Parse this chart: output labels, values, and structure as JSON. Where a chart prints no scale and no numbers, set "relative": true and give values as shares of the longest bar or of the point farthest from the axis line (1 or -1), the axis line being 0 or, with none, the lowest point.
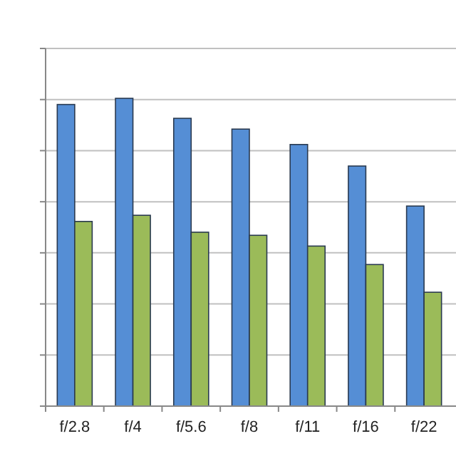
{
  "chart_data": {
    "type": "bar",
    "relative": true,
    "grid": "y",
    "categories": [
      "f/2.8",
      "f/4",
      "f/5.6",
      "f/8",
      "f/11",
      "f/16",
      "f/22"
    ],
    "series": [
      {
        "color": "#558ed5",
        "values": [
          0.98,
          1,
          0.935,
          0.9,
          0.85,
          0.78,
          0.65
        ]
      },
      {
        "color": "#9bbb59",
        "values": [
          0.6,
          0.62,
          0.565,
          0.555,
          0.52,
          0.46,
          0.37
        ]
      }
    ]
  }
}
